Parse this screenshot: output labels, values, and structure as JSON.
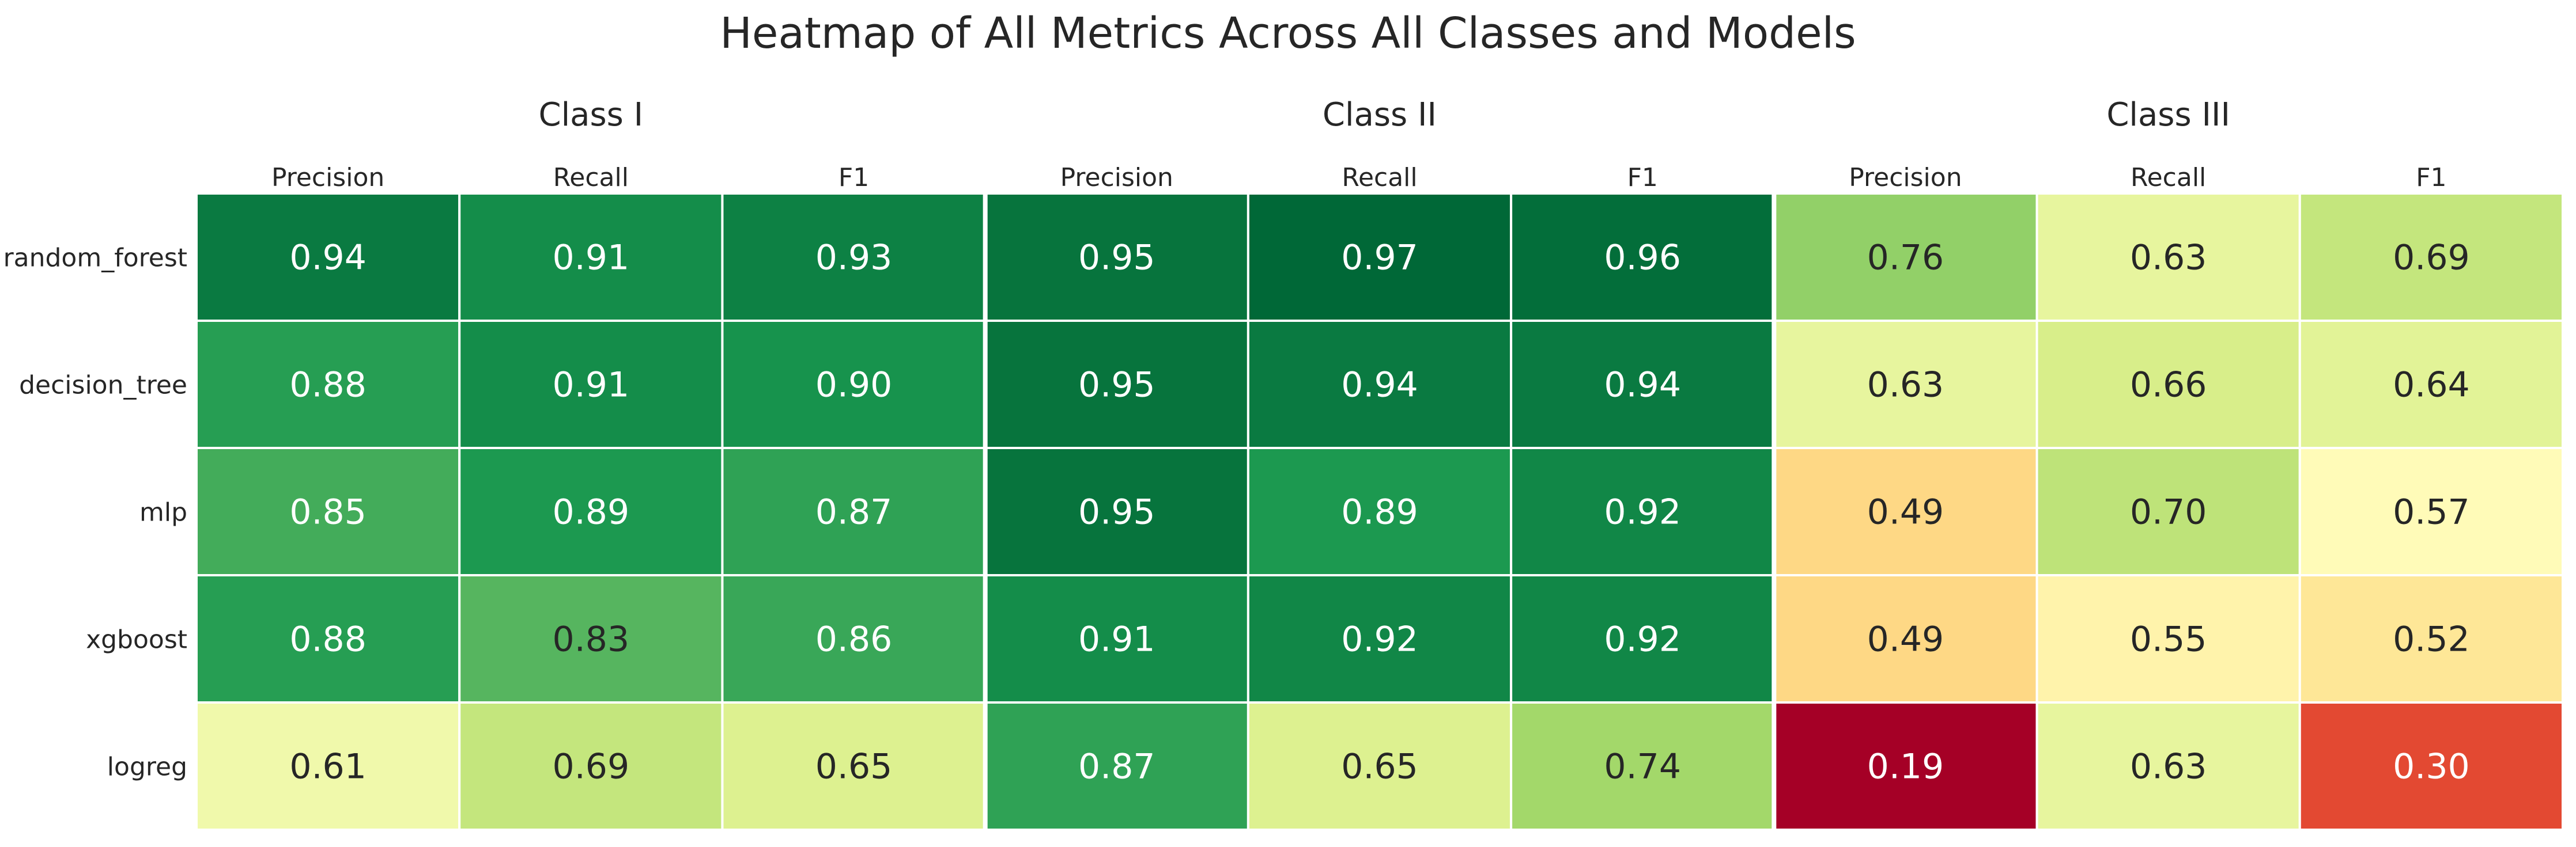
{
  "chart_data": {
    "type": "heatmap",
    "title": "Heatmap of All Metrics Across All Classes and Models",
    "groups": [
      "Class I",
      "Class II",
      "Class III"
    ],
    "metrics": [
      "Precision",
      "Recall",
      "F1"
    ],
    "rows": [
      "random_forest",
      "decision_tree",
      "mlp",
      "xgboost",
      "logreg"
    ],
    "values": [
      [
        0.94,
        0.91,
        0.93,
        0.95,
        0.97,
        0.96,
        0.76,
        0.63,
        0.69
      ],
      [
        0.88,
        0.91,
        0.9,
        0.95,
        0.94,
        0.94,
        0.63,
        0.66,
        0.64
      ],
      [
        0.85,
        0.89,
        0.87,
        0.95,
        0.89,
        0.92,
        0.49,
        0.7,
        0.57
      ],
      [
        0.88,
        0.83,
        0.86,
        0.91,
        0.92,
        0.92,
        0.49,
        0.55,
        0.52
      ],
      [
        0.61,
        0.69,
        0.65,
        0.87,
        0.65,
        0.74,
        0.19,
        0.63,
        0.3
      ]
    ],
    "colormap": "RdYlGn",
    "colorbar": false,
    "annotations": true,
    "annotation_format": "0.00"
  }
}
